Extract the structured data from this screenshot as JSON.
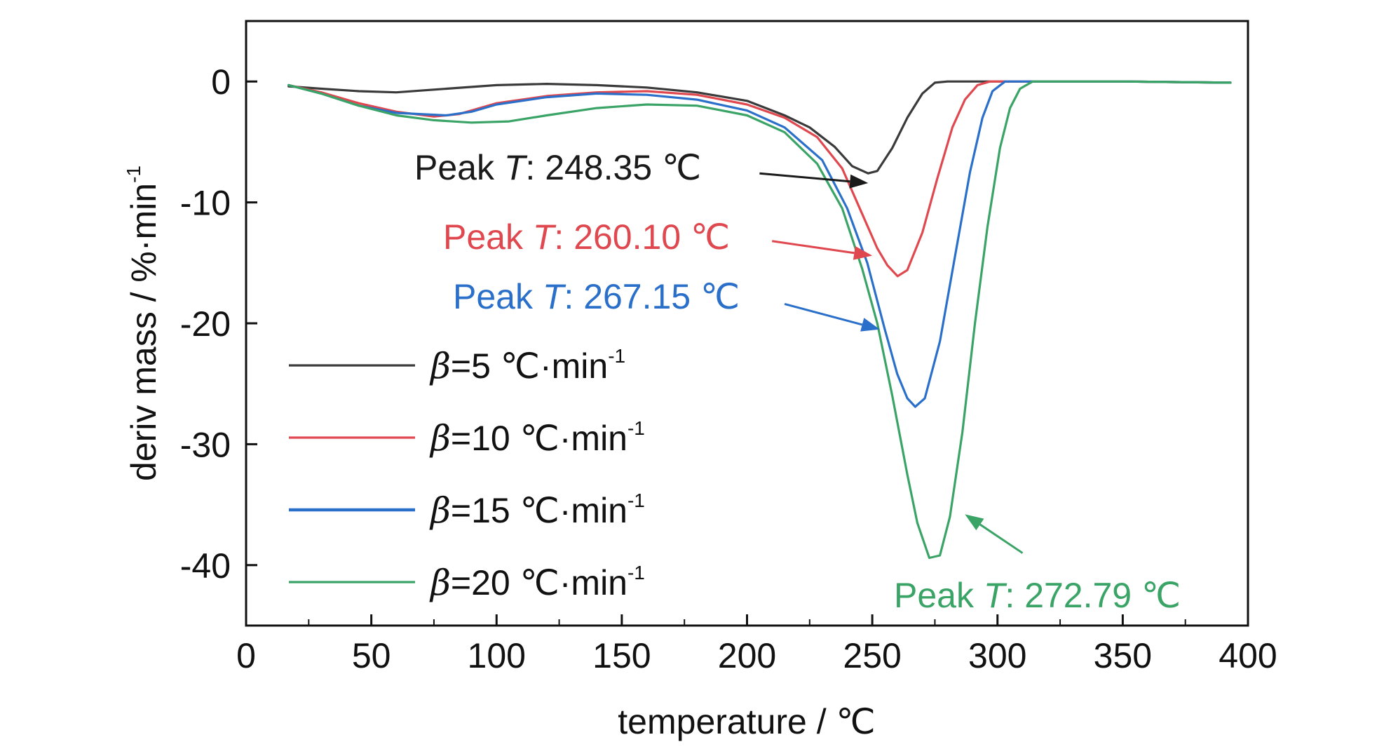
{
  "chart_data": {
    "type": "line",
    "xlabel": "temperature / ℃",
    "ylabel": "deriv mass / %·min",
    "ylabel_sup": "-1",
    "xlim": [
      0,
      400
    ],
    "ylim": [
      -45,
      5
    ],
    "x_ticks": [
      0,
      50,
      100,
      150,
      200,
      250,
      300,
      350,
      400
    ],
    "y_ticks": [
      0,
      -10,
      -20,
      -30,
      -40
    ],
    "x_tick_labels": [
      "0",
      "50",
      "100",
      "150",
      "200",
      "250",
      "300",
      "350",
      "400"
    ],
    "y_tick_labels": [
      "0",
      "-10",
      "-20",
      "-30",
      "-40"
    ],
    "grid": false,
    "legend_position": "lower-left",
    "series": [
      {
        "name": "β=5 ℃·min-1",
        "legend": {
          "symbol": "β",
          "text": "=5 ℃·min",
          "sup": "-1"
        },
        "color": "#3a3a3a",
        "points": [
          [
            17,
            -0.4
          ],
          [
            30,
            -0.6
          ],
          [
            45,
            -0.8
          ],
          [
            60,
            -0.9
          ],
          [
            80,
            -0.6
          ],
          [
            100,
            -0.3
          ],
          [
            120,
            -0.2
          ],
          [
            140,
            -0.3
          ],
          [
            160,
            -0.5
          ],
          [
            180,
            -0.9
          ],
          [
            200,
            -1.6
          ],
          [
            215,
            -2.8
          ],
          [
            225,
            -3.8
          ],
          [
            235,
            -5.4
          ],
          [
            242,
            -7.0
          ],
          [
            248.35,
            -7.6
          ],
          [
            252,
            -7.4
          ],
          [
            258,
            -5.5
          ],
          [
            264,
            -3.0
          ],
          [
            270,
            -1.0
          ],
          [
            275,
            -0.1
          ],
          [
            280,
            0
          ],
          [
            300,
            0
          ],
          [
            350,
            0
          ],
          [
            393,
            -0.1
          ]
        ]
      },
      {
        "name": "β=10 ℃·min-1",
        "legend": {
          "symbol": "β",
          "text": "=10 ℃·min",
          "sup": "-1"
        },
        "color": "#e0484f",
        "points": [
          [
            17,
            -0.3
          ],
          [
            30,
            -0.9
          ],
          [
            45,
            -1.8
          ],
          [
            60,
            -2.5
          ],
          [
            75,
            -2.9
          ],
          [
            85,
            -2.7
          ],
          [
            100,
            -1.8
          ],
          [
            120,
            -1.2
          ],
          [
            140,
            -0.9
          ],
          [
            160,
            -0.8
          ],
          [
            180,
            -1.1
          ],
          [
            200,
            -1.9
          ],
          [
            215,
            -3.0
          ],
          [
            228,
            -4.6
          ],
          [
            238,
            -7.2
          ],
          [
            245,
            -10.5
          ],
          [
            252,
            -13.8
          ],
          [
            256,
            -15.2
          ],
          [
            260.1,
            -16.1
          ],
          [
            264,
            -15.6
          ],
          [
            270,
            -12.5
          ],
          [
            276,
            -8.0
          ],
          [
            282,
            -3.8
          ],
          [
            287,
            -1.5
          ],
          [
            292,
            -0.3
          ],
          [
            297,
            0
          ],
          [
            350,
            0
          ],
          [
            393,
            -0.1
          ]
        ]
      },
      {
        "name": "β=15 ℃·min-1",
        "legend": {
          "symbol": "β",
          "text": "=15 ℃·min",
          "sup": "-1"
        },
        "color": "#2a6fc9",
        "points": [
          [
            17,
            -0.3
          ],
          [
            30,
            -1.0
          ],
          [
            45,
            -2.0
          ],
          [
            60,
            -2.6
          ],
          [
            80,
            -2.8
          ],
          [
            90,
            -2.5
          ],
          [
            100,
            -1.9
          ],
          [
            120,
            -1.3
          ],
          [
            140,
            -1.0
          ],
          [
            160,
            -1.1
          ],
          [
            180,
            -1.5
          ],
          [
            200,
            -2.4
          ],
          [
            215,
            -3.8
          ],
          [
            230,
            -6.5
          ],
          [
            240,
            -10.5
          ],
          [
            248,
            -15.0
          ],
          [
            255,
            -20.5
          ],
          [
            260,
            -24.2
          ],
          [
            264,
            -26.2
          ],
          [
            267.15,
            -26.9
          ],
          [
            271,
            -26.2
          ],
          [
            277,
            -21.5
          ],
          [
            283,
            -14.5
          ],
          [
            289,
            -7.5
          ],
          [
            294,
            -3.0
          ],
          [
            298,
            -0.8
          ],
          [
            303,
            0
          ],
          [
            350,
            0
          ],
          [
            393,
            -0.1
          ]
        ]
      },
      {
        "name": "β=20 ℃·min-1",
        "legend": {
          "symbol": "β",
          "text": "=20 ℃·min",
          "sup": "-1"
        },
        "color": "#3aa366",
        "points": [
          [
            17,
            -0.3
          ],
          [
            30,
            -1.0
          ],
          [
            45,
            -2.0
          ],
          [
            60,
            -2.8
          ],
          [
            75,
            -3.2
          ],
          [
            90,
            -3.4
          ],
          [
            105,
            -3.3
          ],
          [
            120,
            -2.8
          ],
          [
            140,
            -2.2
          ],
          [
            160,
            -1.9
          ],
          [
            180,
            -2.0
          ],
          [
            200,
            -2.8
          ],
          [
            215,
            -4.2
          ],
          [
            228,
            -6.8
          ],
          [
            238,
            -10.5
          ],
          [
            246,
            -15.5
          ],
          [
            252,
            -20.0
          ],
          [
            258,
            -26.0
          ],
          [
            264,
            -32.5
          ],
          [
            268,
            -36.5
          ],
          [
            272.79,
            -39.4
          ],
          [
            277,
            -39.2
          ],
          [
            281,
            -36.0
          ],
          [
            286,
            -29.0
          ],
          [
            291,
            -20.0
          ],
          [
            296,
            -12.0
          ],
          [
            301,
            -5.5
          ],
          [
            305,
            -2.2
          ],
          [
            309,
            -0.6
          ],
          [
            314,
            0
          ],
          [
            350,
            0
          ],
          [
            393,
            -0.1
          ]
        ]
      }
    ],
    "annotations": [
      {
        "text_a": "Peak ",
        "text_b": "T",
        "text_c": ": 248.35 ℃",
        "color": "#1a1a1a",
        "arrow_from": [
          205,
          -7.6
        ],
        "arrow_to": [
          248.35,
          -8.4
        ]
      },
      {
        "text_a": "Peak ",
        "text_b": "T",
        "text_c": ": 260.10 ℃",
        "color": "#e0484f",
        "arrow_from": [
          210,
          -13.2
        ],
        "arrow_to": [
          250,
          -14.4
        ]
      },
      {
        "text_a": "Peak ",
        "text_b": "T",
        "text_c": ": 267.15 ℃",
        "color": "#2a6fc9",
        "arrow_from": [
          215,
          -18.4
        ],
        "arrow_to": [
          253,
          -20.5
        ]
      },
      {
        "text_a": "Peak ",
        "text_b": "T",
        "text_c": ": 272.79 ℃",
        "color": "#3aa366",
        "arrow_from": [
          310,
          -39.0
        ],
        "arrow_to": [
          287,
          -35.8
        ]
      }
    ]
  }
}
